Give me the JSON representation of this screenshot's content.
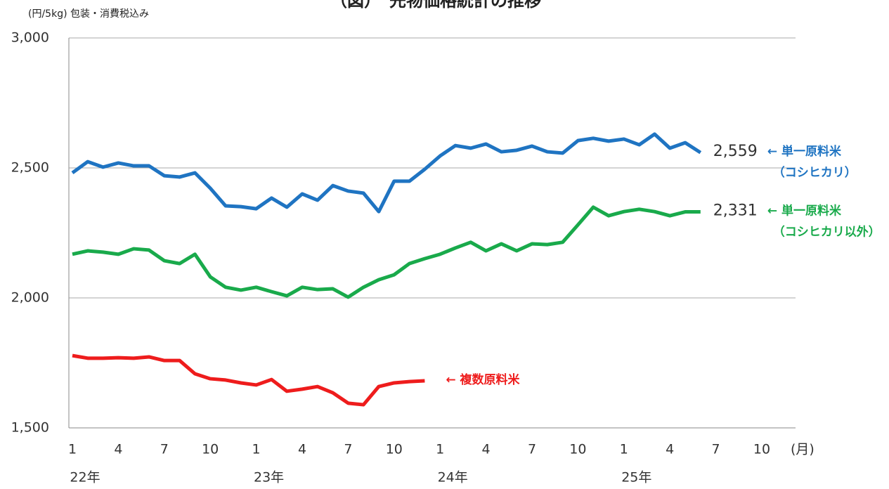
{
  "chart_data": {
    "type": "line",
    "title": "（図）　先物価格統計の推移",
    "y_label": "(円/5kg) 包装・消費税込み",
    "x_unit_label": "(月)",
    "x_group_labels": [
      "22年",
      "23年",
      "24年",
      "25年"
    ],
    "categories": [
      "1",
      null,
      null,
      "4",
      null,
      null,
      "7",
      null,
      null,
      "10",
      null,
      null,
      "1",
      null,
      null,
      "4",
      null,
      null,
      "7",
      null,
      null,
      "10",
      null,
      null,
      "1",
      null,
      null,
      "4",
      null,
      null,
      "7",
      null,
      null,
      "10",
      null,
      null,
      "1",
      null,
      null,
      "4",
      null,
      null,
      "7",
      null,
      null,
      "10",
      null,
      null
    ],
    "ylim": [
      1500,
      3000
    ],
    "yticks": [
      {
        "value": 1500,
        "label": "1,500"
      },
      {
        "value": 2000,
        "label": "2,000"
      },
      {
        "value": 2500,
        "label": "2,500"
      },
      {
        "value": 3000,
        "label": "3,000"
      }
    ],
    "grid": true,
    "series": [
      {
        "label_lines": [
          "← 単一原料米",
          "（コシヒカリ）"
        ],
        "color": "#1f74c2",
        "values": [
          2481,
          2524,
          2503,
          2519,
          2508,
          2508,
          2470,
          2465,
          2481,
          2422,
          2354,
          2351,
          2343,
          2384,
          2349,
          2400,
          2376,
          2432,
          2411,
          2403,
          2332,
          2449,
          2449,
          2495,
          2546,
          2586,
          2576,
          2592,
          2562,
          2568,
          2584,
          2562,
          2557,
          2605,
          2614,
          2603,
          2611,
          2589,
          2630,
          2576,
          2597,
          2559,
          null,
          null,
          null,
          null,
          null,
          null
        ],
        "value_labels": [
          null,
          null,
          null,
          null,
          null,
          null,
          null,
          null,
          null,
          null,
          null,
          null,
          null,
          null,
          null,
          null,
          null,
          null,
          null,
          null,
          null,
          null,
          null,
          null,
          null,
          null,
          null,
          null,
          null,
          null,
          null,
          null,
          null,
          null,
          null,
          null,
          null,
          null,
          null,
          null,
          null,
          "2,559",
          null,
          null,
          null,
          null,
          null,
          null
        ]
      },
      {
        "label_lines": [
          "← 単一原料米",
          "（コシヒカリ以外）"
        ],
        "color": "#19aa4b",
        "values": [
          2168,
          2181,
          2176,
          2168,
          2189,
          2184,
          2143,
          2132,
          2168,
          2081,
          2041,
          2030,
          2041,
          2024,
          2008,
          2041,
          2032,
          2035,
          2003,
          2041,
          2070,
          2089,
          2132,
          2151,
          2168,
          2192,
          2214,
          2181,
          2208,
          2181,
          2208,
          2205,
          2214,
          2281,
          2349,
          2316,
          2332,
          2341,
          2332,
          2316,
          2331,
          2331,
          null,
          null,
          null,
          null,
          null,
          null
        ],
        "value_labels": [
          null,
          null,
          null,
          null,
          null,
          null,
          null,
          null,
          null,
          null,
          null,
          null,
          null,
          null,
          null,
          null,
          null,
          null,
          null,
          null,
          null,
          null,
          null,
          null,
          null,
          null,
          null,
          null,
          null,
          null,
          null,
          null,
          null,
          null,
          null,
          null,
          null,
          null,
          null,
          null,
          null,
          "2,331",
          null,
          null,
          null,
          null,
          null,
          null
        ]
      },
      {
        "label_lines": [
          "← 複数原料米"
        ],
        "color": "#ee1c1c",
        "values": [
          1778,
          1768,
          1768,
          1770,
          1768,
          1773,
          1759,
          1759,
          1708,
          1689,
          1684,
          1673,
          1665,
          1686,
          1641,
          1649,
          1659,
          1635,
          1595,
          1589,
          1659,
          1673,
          1678,
          1681,
          null,
          null,
          null,
          null,
          null,
          null,
          null,
          null,
          null,
          null,
          null,
          null,
          null,
          null,
          null,
          null,
          null,
          null,
          null,
          null,
          null,
          null,
          null,
          null
        ]
      }
    ]
  }
}
